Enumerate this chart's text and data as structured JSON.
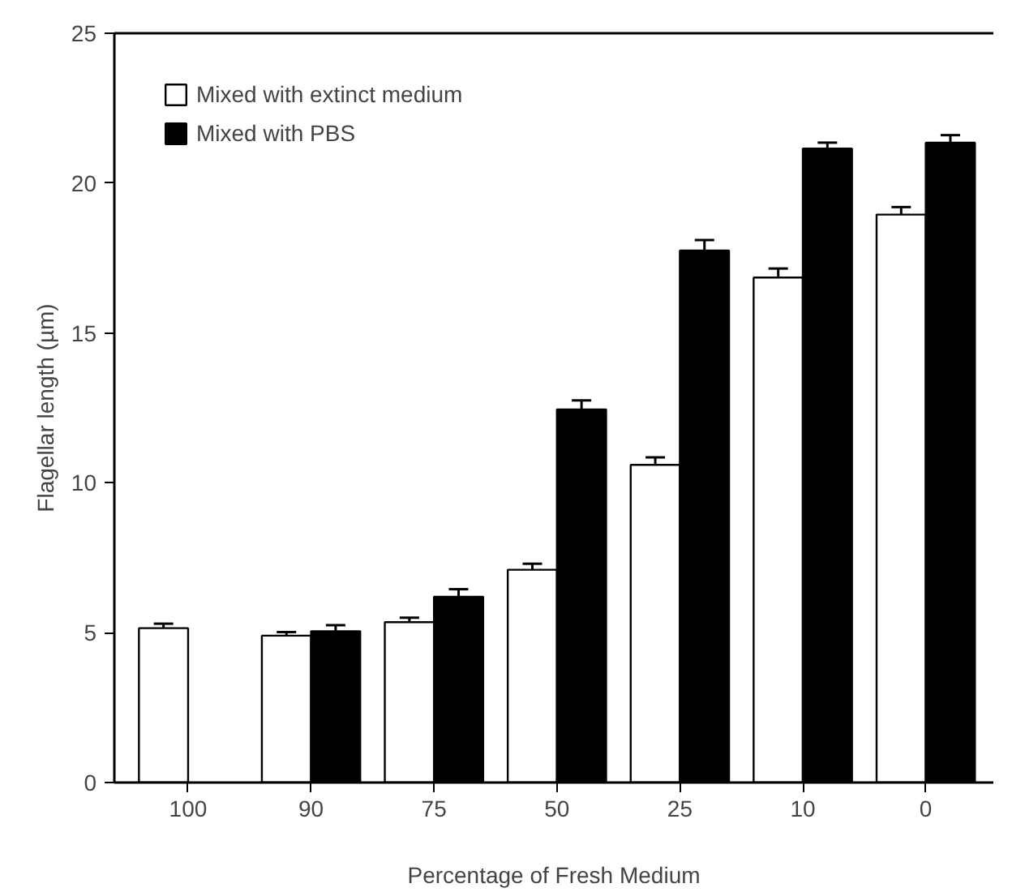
{
  "chart_data": {
    "type": "bar",
    "xlabel": "Percentage of Fresh Medium",
    "ylabel": "Flagellar length (µm)",
    "categories": [
      "100",
      "90",
      "75",
      "50",
      "25",
      "10",
      "0"
    ],
    "series": [
      {
        "name": "Mixed with extinct medium",
        "color": "#ffffff",
        "values": [
          5.15,
          4.9,
          5.35,
          7.1,
          10.6,
          16.85,
          18.95
        ],
        "errors": [
          0.15,
          0.12,
          0.15,
          0.2,
          0.25,
          0.3,
          0.25
        ]
      },
      {
        "name": "Mixed with PBS",
        "color": "#000000",
        "values": [
          null,
          5.05,
          6.2,
          12.45,
          17.75,
          21.15,
          21.35
        ],
        "errors": [
          null,
          0.2,
          0.25,
          0.3,
          0.35,
          0.2,
          0.25
        ]
      }
    ],
    "ylim": [
      0,
      25
    ],
    "yticks": [
      0,
      5,
      10,
      15,
      20,
      25
    ],
    "grid": false,
    "legend": "top left"
  }
}
